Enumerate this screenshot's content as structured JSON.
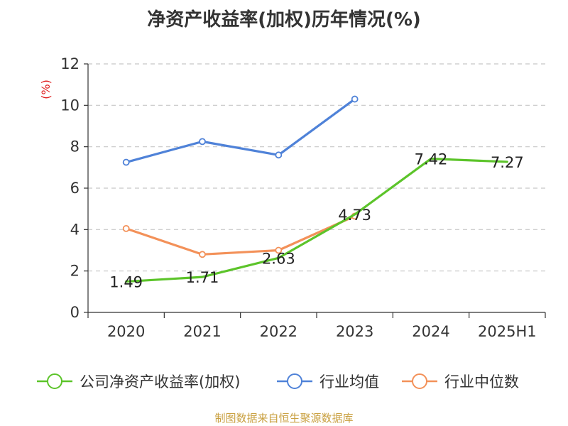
{
  "chart_data": {
    "type": "line",
    "title": "净资产收益率(加权)历年情况(%)",
    "ylabel": "(%)",
    "categories": [
      "2020",
      "2021",
      "2022",
      "2023",
      "2024",
      "2025H1"
    ],
    "ylim": [
      0,
      12
    ],
    "yticks": [
      0,
      2,
      4,
      6,
      8,
      10,
      12
    ],
    "grid": "horizontal dashed",
    "legend_position": "bottom",
    "series": [
      {
        "name": "公司净资产收益率(加权)",
        "color": "#5cc42a",
        "values": [
          1.49,
          1.71,
          2.63,
          4.73,
          7.42,
          7.27
        ],
        "labels": [
          "1.49",
          "1.71",
          "2.63",
          "4.73",
          "7.42",
          "7.27"
        ]
      },
      {
        "name": "行业均值",
        "color": "#4f82d8",
        "values": [
          7.25,
          8.25,
          7.6,
          10.3,
          null,
          null
        ]
      },
      {
        "name": "行业中位数",
        "color": "#f39159",
        "values": [
          4.05,
          2.8,
          3.0,
          4.65,
          null,
          null
        ]
      }
    ]
  },
  "source": "制图数据来自恒生聚源数据库"
}
